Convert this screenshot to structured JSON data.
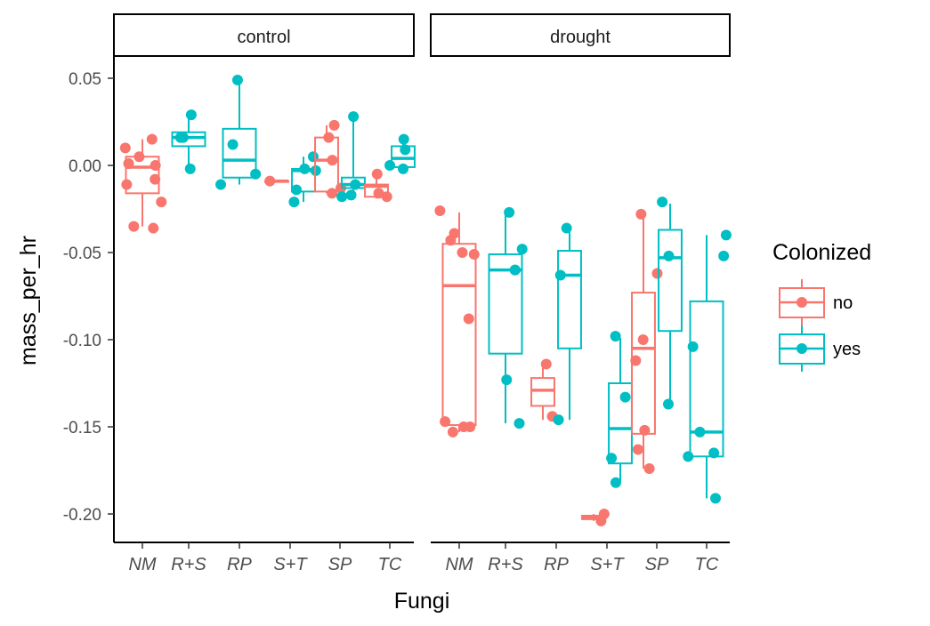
{
  "chart_data": {
    "type": "box",
    "xlabel": "Fungi",
    "ylabel": "mass_per_hr",
    "ylim": [
      -0.215,
      0.062
    ],
    "yticks": [
      0.05,
      0.0,
      -0.05,
      -0.1,
      -0.15,
      -0.2
    ],
    "ytick_labels": [
      "0.05",
      "0.00",
      "-0.05",
      "-0.10",
      "-0.15",
      "-0.20"
    ],
    "categories": [
      "NM",
      "R+S",
      "RP",
      "S+T",
      "SP",
      "TC"
    ],
    "facets": [
      "control",
      "drought"
    ],
    "legend": {
      "title": "Colonized",
      "position": "right",
      "entries": [
        {
          "label": "no",
          "color": "#F8766D"
        },
        {
          "label": "yes",
          "color": "#00BFC4"
        }
      ]
    },
    "series": [
      {
        "facet": "control",
        "fungi": "NM",
        "colonized": "no",
        "box": {
          "min": -0.035,
          "q1": -0.016,
          "median": -0.001,
          "q3": 0.005,
          "max": 0.015
        },
        "points": [
          0.015,
          0.01,
          0.005,
          0.0,
          0.001,
          -0.008,
          -0.011,
          -0.021,
          -0.035,
          -0.036
        ]
      },
      {
        "facet": "control",
        "fungi": "R+S",
        "colonized": "yes",
        "box": {
          "min": -0.002,
          "q1": 0.011,
          "median": 0.016,
          "q3": 0.019,
          "max": 0.029
        },
        "points": [
          0.029,
          0.016,
          0.016,
          -0.002
        ]
      },
      {
        "facet": "control",
        "fungi": "RP",
        "colonized": "yes",
        "box": {
          "min": -0.011,
          "q1": -0.007,
          "median": 0.003,
          "q3": 0.021,
          "max": 0.049
        },
        "points": [
          0.049,
          0.012,
          -0.005,
          -0.011
        ]
      },
      {
        "facet": "control",
        "fungi": "S+T",
        "colonized": "no",
        "box": {
          "min": -0.009,
          "q1": -0.009,
          "median": -0.009,
          "q3": -0.009,
          "max": -0.009
        },
        "points": [
          -0.009
        ]
      },
      {
        "facet": "control",
        "fungi": "S+T",
        "colonized": "yes",
        "box": {
          "min": -0.021,
          "q1": -0.015,
          "median": -0.003,
          "q3": -0.002,
          "max": 0.005
        },
        "points": [
          0.005,
          -0.002,
          -0.003,
          -0.014,
          -0.021
        ]
      },
      {
        "facet": "control",
        "fungi": "SP",
        "colonized": "no",
        "box": {
          "min": -0.016,
          "q1": -0.015,
          "median": 0.003,
          "q3": 0.016,
          "max": 0.023
        },
        "points": [
          0.023,
          0.016,
          0.003,
          -0.013,
          -0.016
        ]
      },
      {
        "facet": "control",
        "fungi": "SP",
        "colonized": "yes",
        "box": {
          "min": -0.018,
          "q1": -0.013,
          "median": -0.011,
          "q3": -0.007,
          "max": 0.028
        },
        "points": [
          0.028,
          -0.011,
          -0.018,
          -0.017
        ]
      },
      {
        "facet": "control",
        "fungi": "TC",
        "colonized": "no",
        "box": {
          "min": -0.019,
          "q1": -0.018,
          "median": -0.012,
          "q3": -0.011,
          "max": -0.005
        },
        "points": [
          -0.005,
          -0.016,
          -0.018
        ]
      },
      {
        "facet": "control",
        "fungi": "TC",
        "colonized": "yes",
        "box": {
          "min": -0.003,
          "q1": -0.001,
          "median": 0.004,
          "q3": 0.011,
          "max": 0.015
        },
        "points": [
          0.015,
          0.009,
          0.0,
          -0.002
        ]
      },
      {
        "facet": "drought",
        "fungi": "NM",
        "colonized": "no",
        "box": {
          "min": -0.153,
          "q1": -0.149,
          "median": -0.069,
          "q3": -0.045,
          "max": -0.027
        },
        "points": [
          -0.026,
          -0.039,
          -0.043,
          -0.05,
          -0.051,
          -0.088,
          -0.147,
          -0.15,
          -0.15,
          -0.153
        ]
      },
      {
        "facet": "drought",
        "fungi": "R+S",
        "colonized": "yes",
        "box": {
          "min": -0.148,
          "q1": -0.108,
          "median": -0.06,
          "q3": -0.051,
          "max": -0.027
        },
        "points": [
          -0.027,
          -0.048,
          -0.06,
          -0.06,
          -0.123,
          -0.148
        ]
      },
      {
        "facet": "drought",
        "fungi": "RP",
        "colonized": "no",
        "box": {
          "min": -0.146,
          "q1": -0.138,
          "median": -0.129,
          "q3": -0.122,
          "max": -0.115
        },
        "points": [
          -0.114,
          -0.144
        ]
      },
      {
        "facet": "drought",
        "fungi": "RP",
        "colonized": "yes",
        "box": {
          "min": -0.146,
          "q1": -0.105,
          "median": -0.063,
          "q3": -0.049,
          "max": -0.035
        },
        "points": [
          -0.036,
          -0.063,
          -0.146
        ]
      },
      {
        "facet": "drought",
        "fungi": "S+T",
        "colonized": "no",
        "box": {
          "min": -0.204,
          "q1": -0.203,
          "median": -0.202,
          "q3": -0.201,
          "max": -0.2
        },
        "points": [
          -0.2,
          -0.204
        ]
      },
      {
        "facet": "drought",
        "fungi": "S+T",
        "colonized": "yes",
        "box": {
          "min": -0.182,
          "q1": -0.171,
          "median": -0.151,
          "q3": -0.125,
          "max": -0.099
        },
        "points": [
          -0.098,
          -0.133,
          -0.168,
          -0.182
        ]
      },
      {
        "facet": "drought",
        "fungi": "SP",
        "colonized": "no",
        "box": {
          "min": -0.174,
          "q1": -0.154,
          "median": -0.105,
          "q3": -0.073,
          "max": -0.028
        },
        "points": [
          -0.028,
          -0.062,
          -0.1,
          -0.112,
          -0.152,
          -0.163,
          -0.174
        ]
      },
      {
        "facet": "drought",
        "fungi": "SP",
        "colonized": "yes",
        "box": {
          "min": -0.138,
          "q1": -0.095,
          "median": -0.053,
          "q3": -0.037,
          "max": -0.022
        },
        "points": [
          -0.021,
          -0.052,
          -0.137
        ]
      },
      {
        "facet": "drought",
        "fungi": "TC",
        "colonized": "yes",
        "box": {
          "min": -0.191,
          "q1": -0.167,
          "median": -0.153,
          "q3": -0.078,
          "max": -0.04
        },
        "points": [
          -0.04,
          -0.052,
          -0.104,
          -0.153,
          -0.167,
          -0.165,
          -0.191
        ]
      }
    ]
  }
}
